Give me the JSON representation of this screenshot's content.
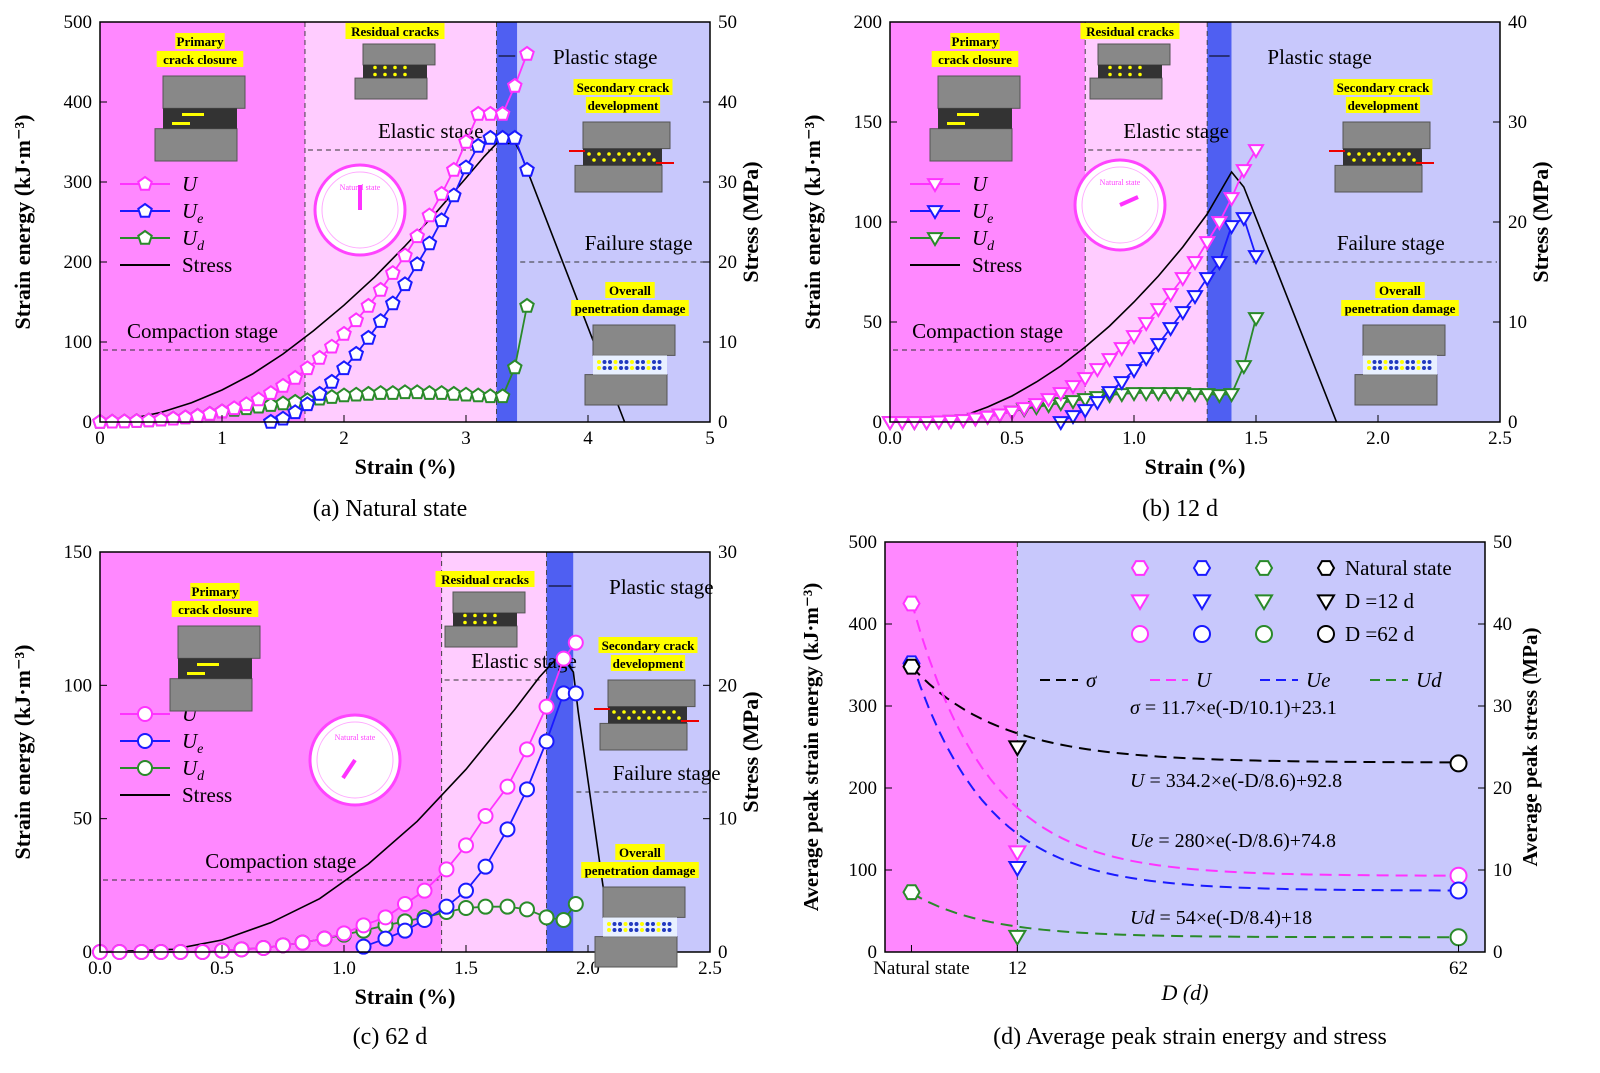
{
  "colors": {
    "compaction": "#ff88ff",
    "elastic": "#ffccff",
    "plastic": "#4f5ff2",
    "failure": "#c8c8fc",
    "U": "#ff33ff",
    "Ue": "#1a1aff",
    "Ud": "#2a8a2a",
    "stress": "#000000",
    "label_bg": "#ffff00",
    "d_left": "#ff88ff",
    "d_right": "#c8c8fc"
  },
  "chart_data": [
    {
      "id": "a",
      "type": "line",
      "caption": "(a) Natural state",
      "xlabel": "Strain (%)",
      "ylabel": "Strain energy (kJ·m⁻³)",
      "y2label": "Stress (MPa)",
      "xlim": [
        0,
        5
      ],
      "ylim": [
        0,
        500
      ],
      "y2lim": [
        0,
        50
      ],
      "xticks": [
        "0",
        "1",
        "2",
        "3",
        "4",
        "5"
      ],
      "yticks": [
        "0",
        "100",
        "200",
        "300",
        "400",
        "500"
      ],
      "y2ticks": [
        "0",
        "10",
        "20",
        "30",
        "40",
        "50"
      ],
      "marker": "pentagon",
      "stage_bounds": [
        1.68,
        3.25,
        3.42
      ],
      "stage_labels": {
        "compaction": "Compaction stage",
        "elastic": "Elastic stage",
        "plastic": "Plastic stage",
        "failure": "Failure stage"
      },
      "legend": [
        "U",
        "Ue",
        "Ud",
        "Stress"
      ],
      "annotations": {
        "primary": [
          "Primary",
          "crack closure"
        ],
        "residual": "Residual cracks",
        "secondary": [
          "Secondary crack",
          "development"
        ],
        "overall": [
          "Overall",
          "penetration damage"
        ],
        "dial": "Natural state"
      },
      "series": [
        {
          "name": "U",
          "x": [
            0,
            0.1,
            0.2,
            0.3,
            0.4,
            0.5,
            0.6,
            0.7,
            0.8,
            0.9,
            1.0,
            1.1,
            1.2,
            1.3,
            1.4,
            1.5,
            1.6,
            1.7,
            1.8,
            1.9,
            2.0,
            2.1,
            2.2,
            2.3,
            2.4,
            2.5,
            2.6,
            2.7,
            2.8,
            2.9,
            3.0,
            3.1,
            3.2,
            3.3,
            3.4,
            3.5
          ],
          "y": [
            0,
            0.2,
            0.5,
            1,
            1.8,
            2.8,
            4,
            5.5,
            7.5,
            10,
            13,
            17,
            22,
            28,
            36,
            45,
            55,
            67,
            80,
            94,
            110,
            127,
            145,
            165,
            186,
            208,
            232,
            258,
            285,
            315,
            350,
            385,
            385,
            385,
            420,
            460
          ]
        },
        {
          "name": "Ue",
          "x": [
            1.4,
            1.5,
            1.6,
            1.7,
            1.8,
            1.9,
            2.0,
            2.1,
            2.2,
            2.3,
            2.4,
            2.5,
            2.6,
            2.7,
            2.8,
            2.9,
            3.0,
            3.1,
            3.2,
            3.3,
            3.4,
            3.5
          ],
          "y": [
            0,
            4,
            12,
            22,
            35,
            50,
            67,
            85,
            105,
            126,
            148,
            172,
            197,
            223,
            252,
            283,
            318,
            345,
            355,
            355,
            355,
            315
          ]
        },
        {
          "name": "Ud",
          "x": [
            0,
            0.1,
            0.2,
            0.3,
            0.4,
            0.5,
            0.6,
            0.7,
            0.8,
            0.9,
            1.0,
            1.1,
            1.2,
            1.3,
            1.4,
            1.5,
            1.6,
            1.7,
            1.8,
            1.9,
            2.0,
            2.1,
            2.2,
            2.3,
            2.4,
            2.5,
            2.6,
            2.7,
            2.8,
            2.9,
            3.0,
            3.1,
            3.2,
            3.3,
            3.4,
            3.5
          ],
          "y": [
            0,
            0.2,
            0.5,
            1,
            1.8,
            2.8,
            4,
            5.5,
            7.5,
            10,
            13,
            15,
            17,
            19,
            21,
            23,
            25,
            27,
            29,
            31,
            33,
            34,
            35,
            36,
            36,
            37,
            37,
            36,
            36,
            35,
            34,
            33,
            32,
            32,
            68,
            145
          ]
        },
        {
          "name": "Stress",
          "x": [
            0,
            0.25,
            0.5,
            0.75,
            1,
            1.25,
            1.5,
            1.75,
            2,
            2.25,
            2.5,
            2.75,
            3,
            3.15,
            3.25,
            3.3,
            3.35,
            3.4,
            3.45,
            4.3
          ],
          "y": [
            0,
            0.4,
            1.2,
            2.4,
            4,
            6,
            8.5,
            11.4,
            14.6,
            18.1,
            22,
            26.1,
            30.5,
            33.2,
            34.8,
            35,
            34.8,
            35,
            33.5,
            0
          ]
        }
      ]
    },
    {
      "id": "b",
      "type": "line",
      "caption": "(b) 12 d",
      "xlabel": "Strain (%)",
      "ylabel": "Strain energy (kJ·m⁻³)",
      "y2label": "Stress (MPa)",
      "xlim": [
        0,
        2.5
      ],
      "ylim": [
        0,
        200
      ],
      "y2lim": [
        0,
        40
      ],
      "xticks": [
        "0.0",
        "0.5",
        "1.0",
        "1.5",
        "2.0",
        "2.5"
      ],
      "yticks": [
        "0",
        "50",
        "100",
        "150",
        "200"
      ],
      "y2ticks": [
        "0",
        "10",
        "20",
        "30",
        "40"
      ],
      "marker": "triangle-down",
      "stage_bounds": [
        0.8,
        1.3,
        1.4
      ],
      "stage_labels": {
        "compaction": "Compaction stage",
        "elastic": "Elastic stage",
        "plastic": "Plastic stage",
        "failure": "Failure stage"
      },
      "legend": [
        "U",
        "Ue",
        "Ud",
        "Stress"
      ],
      "annotations": {
        "primary": [
          "Primary",
          "crack closure"
        ],
        "residual": "Residual cracks",
        "secondary": [
          "Secondary crack",
          "development"
        ],
        "overall": [
          "Overall",
          "penetration damage"
        ],
        "dial": "Natural state"
      },
      "series": [
        {
          "name": "U",
          "x": [
            0,
            0.05,
            0.1,
            0.15,
            0.2,
            0.25,
            0.3,
            0.35,
            0.4,
            0.45,
            0.5,
            0.55,
            0.6,
            0.65,
            0.7,
            0.75,
            0.8,
            0.85,
            0.9,
            0.95,
            1.0,
            1.05,
            1.1,
            1.15,
            1.2,
            1.25,
            1.3,
            1.35,
            1.4,
            1.45,
            1.5
          ],
          "y": [
            0,
            0,
            0,
            0,
            0.3,
            0.6,
            1,
            1.8,
            2.7,
            3.8,
            5.2,
            7,
            9,
            11.5,
            14.5,
            18,
            22,
            26.5,
            31.5,
            37,
            43,
            49.5,
            56.5,
            64,
            72,
            80,
            90,
            100,
            112,
            126,
            136
          ]
        },
        {
          "name": "Ue",
          "x": [
            0.7,
            0.75,
            0.8,
            0.85,
            0.9,
            0.95,
            1.0,
            1.05,
            1.1,
            1.15,
            1.2,
            1.25,
            1.3,
            1.35,
            1.4,
            1.45,
            1.5
          ],
          "y": [
            0,
            3,
            6,
            10,
            15,
            20,
            26,
            32,
            39,
            47,
            55,
            63,
            72,
            80,
            98,
            102,
            83
          ]
        },
        {
          "name": "Ud",
          "x": [
            0,
            0.05,
            0.1,
            0.15,
            0.2,
            0.25,
            0.3,
            0.35,
            0.4,
            0.45,
            0.5,
            0.55,
            0.6,
            0.65,
            0.7,
            0.75,
            0.8,
            0.85,
            0.9,
            0.95,
            1.0,
            1.05,
            1.1,
            1.15,
            1.2,
            1.25,
            1.3,
            1.35,
            1.4,
            1.45,
            1.5
          ],
          "y": [
            0,
            0,
            0,
            0,
            0.3,
            0.6,
            1,
            1.8,
            2.7,
            3.8,
            5.2,
            6.5,
            7.5,
            8.5,
            9.5,
            10.5,
            11.5,
            12.5,
            13.5,
            14,
            14.5,
            14.5,
            14.5,
            14.5,
            14.5,
            14,
            14,
            13.5,
            14,
            28,
            52
          ]
        },
        {
          "name": "Stress",
          "x": [
            0,
            0.2,
            0.3,
            0.4,
            0.5,
            0.6,
            0.7,
            0.8,
            0.9,
            1.0,
            1.1,
            1.2,
            1.3,
            1.4,
            1.45,
            1.83
          ],
          "y": [
            0,
            0,
            0.6,
            1.5,
            2.6,
            4,
            5.6,
            7.5,
            9.6,
            12,
            14.6,
            17.5,
            20.8,
            25,
            23.5,
            0
          ]
        }
      ]
    },
    {
      "id": "c",
      "type": "line",
      "caption": "(c) 62 d",
      "xlabel": "Strain (%)",
      "ylabel": "Strain energy (kJ·m⁻³)",
      "y2label": "Stress (MPa)",
      "xlim": [
        0,
        2.5
      ],
      "ylim": [
        0,
        150
      ],
      "y2lim": [
        0,
        30
      ],
      "xticks": [
        "0.0",
        "0.5",
        "1.0",
        "1.5",
        "2.0",
        "2.5"
      ],
      "yticks": [
        "0",
        "50",
        "100",
        "150"
      ],
      "y2ticks": [
        "0",
        "10",
        "20",
        "30"
      ],
      "marker": "circle",
      "stage_bounds": [
        1.4,
        1.83,
        1.94
      ],
      "stage_labels": {
        "compaction": "Compaction stage",
        "elastic": "Elastic stage",
        "plastic": "Plastic stage",
        "failure": "Failure stage"
      },
      "legend": [
        "U",
        "Ue",
        "Ud",
        "Stress"
      ],
      "annotations": {
        "primary": [
          "Primary",
          "crack closure"
        ],
        "residual": "Residual cracks",
        "secondary": [
          "Secondary crack",
          "development"
        ],
        "overall": [
          "Overall",
          "penetration damage"
        ],
        "dial": "Natural state"
      },
      "series": [
        {
          "name": "U",
          "x": [
            0,
            0.08,
            0.17,
            0.25,
            0.33,
            0.42,
            0.5,
            0.58,
            0.67,
            0.75,
            0.83,
            0.92,
            1.0,
            1.08,
            1.17,
            1.25,
            1.33,
            1.42,
            1.5,
            1.58,
            1.67,
            1.75,
            1.83,
            1.9,
            1.95
          ],
          "y": [
            0,
            0,
            0,
            0,
            0,
            0,
            0.5,
            1,
            1.5,
            2.5,
            3.5,
            5,
            7,
            10,
            13,
            18,
            23,
            31,
            40,
            51,
            62,
            76,
            92,
            110,
            116
          ]
        },
        {
          "name": "Ue",
          "x": [
            1.08,
            1.17,
            1.25,
            1.33,
            1.42,
            1.5,
            1.58,
            1.67,
            1.75,
            1.83,
            1.9,
            1.95
          ],
          "y": [
            2,
            5,
            8,
            12,
            17,
            23,
            32,
            46,
            61,
            79,
            97,
            97
          ]
        },
        {
          "name": "Ud",
          "x": [
            0,
            0.08,
            0.17,
            0.25,
            0.33,
            0.42,
            0.5,
            0.58,
            0.67,
            0.75,
            0.83,
            0.92,
            1.0,
            1.08,
            1.17,
            1.25,
            1.33,
            1.42,
            1.5,
            1.58,
            1.67,
            1.75,
            1.83,
            1.9,
            1.95
          ],
          "y": [
            0,
            0,
            0,
            0,
            0,
            0,
            0.5,
            1,
            1.5,
            2.5,
            3.5,
            5,
            6.5,
            8,
            10,
            11.5,
            13,
            15,
            16.5,
            17,
            17,
            16,
            13,
            12,
            18
          ]
        },
        {
          "name": "Stress",
          "x": [
            0,
            0.3,
            0.5,
            0.7,
            0.9,
            1.1,
            1.3,
            1.5,
            1.7,
            1.8,
            1.87,
            1.9,
            1.94,
            1.96,
            2.1
          ],
          "y": [
            0,
            0.2,
            0.9,
            2.2,
            4,
            6.6,
            9.8,
            13.7,
            18.2,
            20.6,
            22,
            22,
            21,
            18,
            0
          ]
        }
      ]
    },
    {
      "id": "d",
      "type": "scatter",
      "caption": "(d) Average peak strain energy and stress",
      "xlabel": "D (d)",
      "ylabel": "Average peak strain energy (kJ·m⁻³)",
      "y2label": "Average peak stress (MPa)",
      "xlim": [
        -3,
        65
      ],
      "ylim": [
        0,
        500
      ],
      "y2lim": [
        0,
        50
      ],
      "xticks": [
        "Natural state",
        "12",
        "62"
      ],
      "xtick_values": [
        0,
        12,
        62
      ],
      "yticks": [
        "0",
        "100",
        "200",
        "300",
        "400",
        "500"
      ],
      "y2ticks": [
        "0",
        "10",
        "20",
        "30",
        "40",
        "50"
      ],
      "split_at": 12,
      "legend_rows": [
        "Natural state",
        "D =12 d",
        "D =62 d"
      ],
      "legend_fits": [
        "σ",
        "U",
        "Ue",
        "Ud"
      ],
      "equations": {
        "sigma": "= 11.7×e(-D/10.1)+23.1",
        "U": "= 334.2×e(-D/8.6)+92.8",
        "Ue": "= 280×e(-D/8.6)+74.8",
        "Ud": "= 54×e(-D/8.4)+18"
      },
      "points": [
        {
          "name": "U",
          "x": [
            0,
            12,
            62
          ],
          "y": [
            425,
            122,
            93
          ]
        },
        {
          "name": "Ue",
          "x": [
            0,
            12,
            62
          ],
          "y": [
            352,
            103,
            75
          ]
        },
        {
          "name": "Ud",
          "x": [
            0,
            12,
            62
          ],
          "y": [
            73,
            19,
            18
          ]
        },
        {
          "name": "σ",
          "x": [
            0,
            12,
            62
          ],
          "y": [
            34.8,
            25,
            23
          ]
        }
      ],
      "fits": [
        {
          "name": "σ",
          "a": 11.7,
          "tau": 10.1,
          "c": 23.1,
          "axis": "y2"
        },
        {
          "name": "U",
          "a": 334.2,
          "tau": 8.6,
          "c": 92.8,
          "axis": "y"
        },
        {
          "name": "Ue",
          "a": 280,
          "tau": 8.6,
          "c": 74.8,
          "axis": "y"
        },
        {
          "name": "Ud",
          "a": 54,
          "tau": 8.4,
          "c": 18,
          "axis": "y"
        }
      ]
    }
  ]
}
